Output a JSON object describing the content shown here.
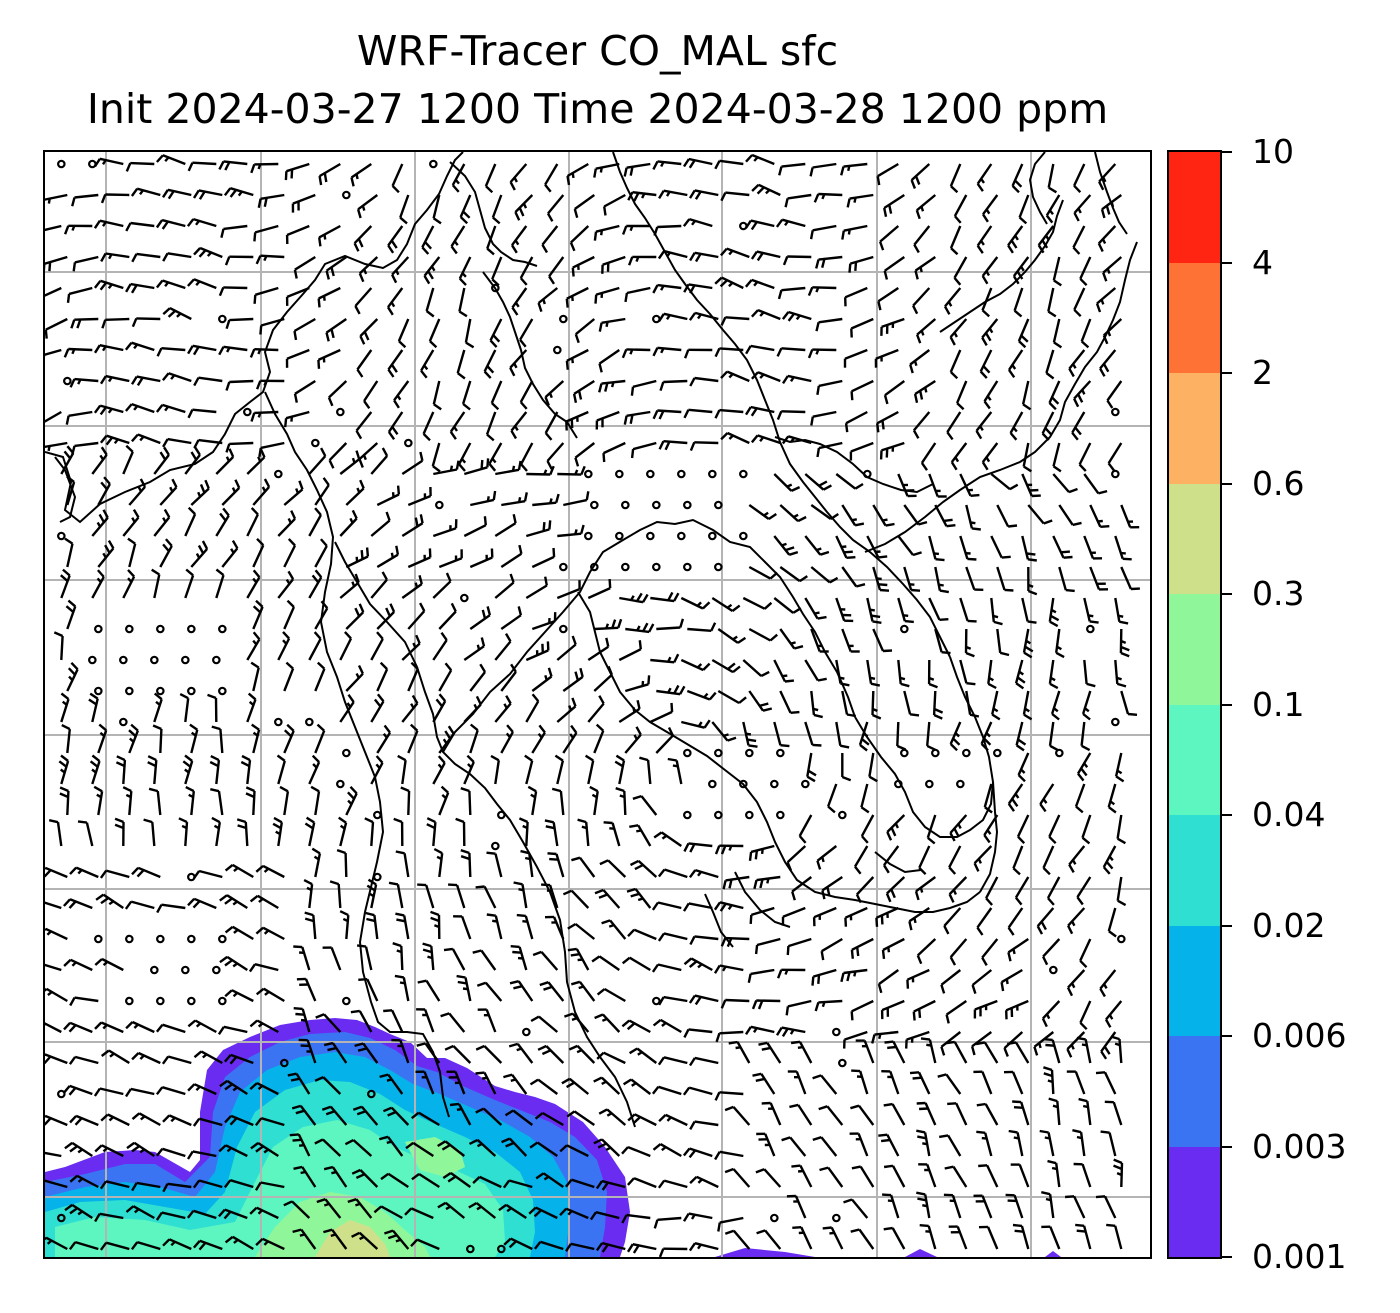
{
  "title": {
    "line1": "WRF-Tracer CO_MAL sfc",
    "line2": "Init 2024-03-27 1200 Time 2024-03-28 1200 ppm"
  },
  "colorbar": {
    "levels": [
      "0.001",
      "0.003",
      "0.006",
      "0.02",
      "0.04",
      "0.1",
      "0.3",
      "0.6",
      "2",
      "4",
      "10"
    ],
    "colors": [
      "#6b2cf2",
      "#3a74f2",
      "#06b2ea",
      "#2fe0d2",
      "#5ef6c0",
      "#8ff79a",
      "#cfe08a",
      "#fdb163",
      "#ff7236",
      "#ff2512"
    ]
  },
  "map": {
    "grid_lines": "on",
    "coastlines": "on",
    "wind_barbs": "on",
    "plume_region": "lower-left"
  }
}
